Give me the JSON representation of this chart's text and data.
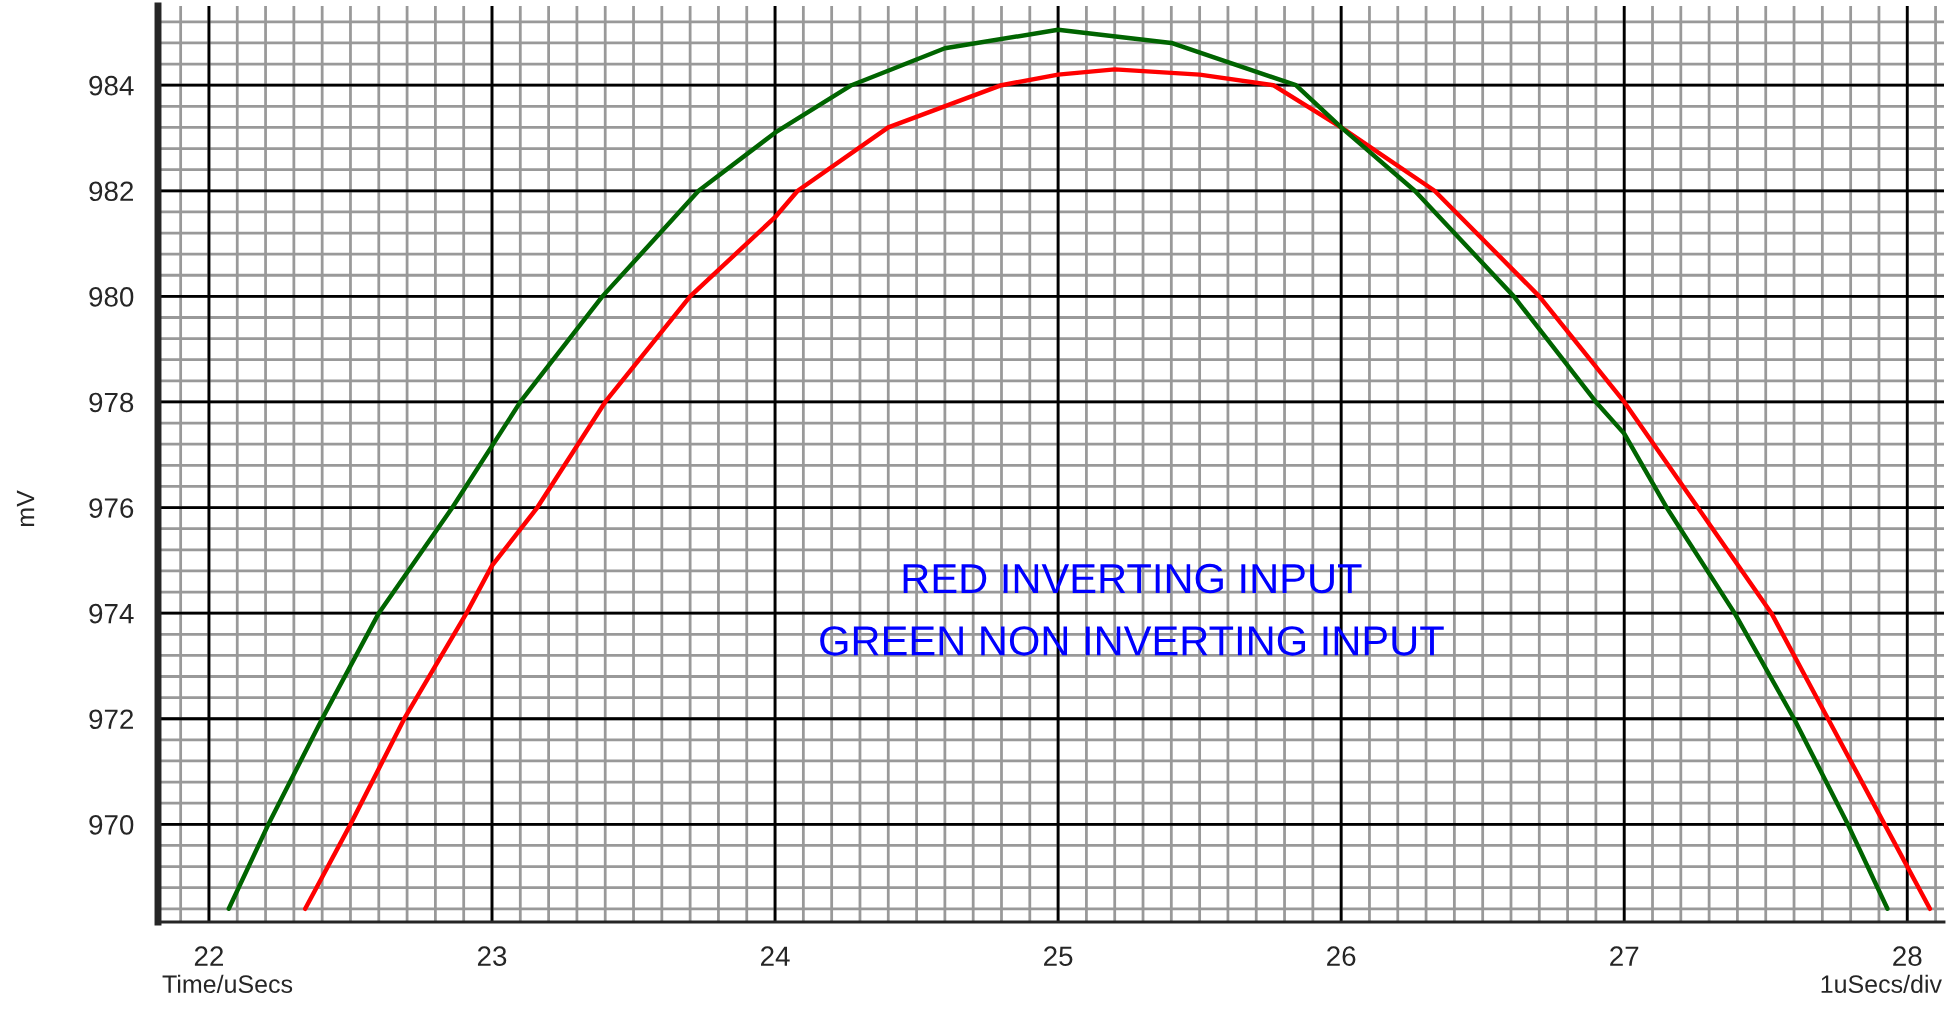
{
  "chart_data": {
    "type": "line",
    "ylabel": "mV",
    "xlabel": "Time/uSecs",
    "annotations": [
      "RED INVERTING INPUT",
      "GREEN NON INVERTING INPUT",
      "1uSecs/div"
    ],
    "xlim": [
      21.82,
      28.13
    ],
    "ylim": [
      968.15,
      985.5
    ],
    "xticks": [
      22,
      23,
      24,
      25,
      26,
      27,
      28
    ],
    "yticks": [
      970,
      972,
      974,
      976,
      978,
      980,
      982,
      984
    ],
    "grid": true,
    "legend": false,
    "marker": "none",
    "line_style": "solid",
    "series": [
      {
        "color": "#ff0000",
        "x": [
          22.34,
          22.5,
          22.69,
          22.91,
          23.0,
          23.16,
          23.4,
          23.7,
          24.0,
          24.08,
          24.4,
          24.8,
          25.0,
          25.2,
          25.5,
          25.76,
          26.0,
          26.33,
          26.7,
          27.0,
          27.26,
          27.52,
          27.72,
          27.92,
          28.08
        ],
        "values": [
          968.4,
          970,
          972,
          974,
          974.9,
          976,
          978,
          980,
          981.5,
          982,
          983.2,
          984,
          984.2,
          984.3,
          984.2,
          984,
          983.2,
          982,
          980,
          978,
          976,
          974,
          972,
          970,
          968.4
        ]
      },
      {
        "color": "#006400",
        "x": [
          22.07,
          22.21,
          22.4,
          22.6,
          22.86,
          23.1,
          23.39,
          23.73,
          24.0,
          24.27,
          24.6,
          25.0,
          25.4,
          25.84,
          26.0,
          26.26,
          26.61,
          26.9,
          27.0,
          27.15,
          27.39,
          27.6,
          27.79,
          27.93
        ],
        "values": [
          968.4,
          970,
          972,
          974,
          976,
          978,
          980,
          982,
          983.1,
          984,
          984.7,
          985.05,
          984.8,
          984,
          983.2,
          982,
          980,
          978,
          977.4,
          976,
          974,
          972,
          970,
          968.4
        ]
      }
    ]
  }
}
